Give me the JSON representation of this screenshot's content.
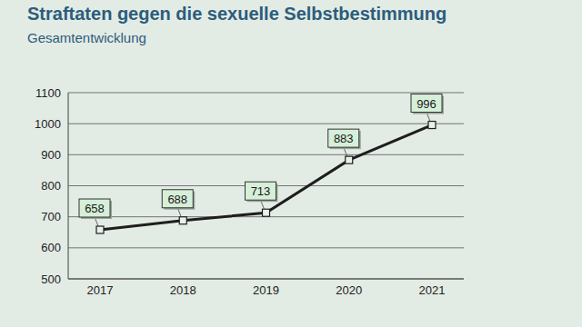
{
  "chart_data": {
    "type": "line",
    "title": "Straftaten gegen die sexuelle Selbstbestimmung",
    "subtitle": "Gesamtentwicklung",
    "categories": [
      "2017",
      "2018",
      "2019",
      "2020",
      "2021"
    ],
    "values": [
      658,
      688,
      713,
      883,
      996
    ],
    "color": "#1e1e1e",
    "marker": "square",
    "ylim": [
      500,
      1100
    ],
    "yticks": [
      500,
      600,
      700,
      800,
      900,
      1000,
      1100
    ],
    "grid": true,
    "data_labels": true
  }
}
